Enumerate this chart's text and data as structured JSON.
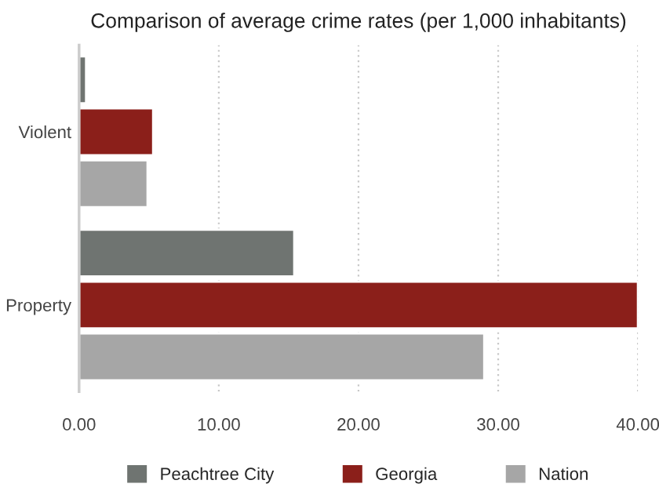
{
  "chart_data": {
    "type": "bar",
    "orientation": "horizontal",
    "title": "Comparison of average crime rates (per 1,000 inhabitants)",
    "categories": [
      "Violent",
      "Property"
    ],
    "series": [
      {
        "name": "Peachtree City",
        "color": "#6f7471",
        "values": [
          0.5,
          15.4
        ]
      },
      {
        "name": "Georgia",
        "color": "#8b1f1a",
        "values": [
          5.3,
          40.0
        ]
      },
      {
        "name": "Nation",
        "color": "#a6a6a6",
        "values": [
          4.9,
          29.0
        ]
      }
    ],
    "xlim": [
      0,
      40
    ],
    "xticks": [
      {
        "value": 0,
        "label": "0.00"
      },
      {
        "value": 10,
        "label": "10.00"
      },
      {
        "value": 20,
        "label": "20.00"
      },
      {
        "value": 30,
        "label": "30.00"
      },
      {
        "value": 40,
        "label": "40.00"
      }
    ],
    "grid": "x",
    "legend": "bottom"
  }
}
